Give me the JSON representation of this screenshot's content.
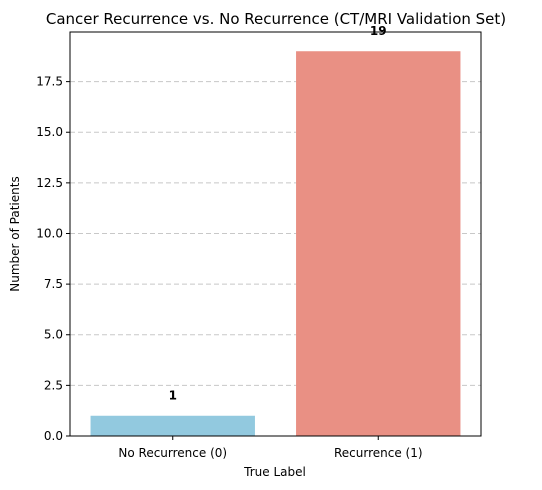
{
  "chart_data": {
    "type": "bar",
    "title": "Cancer Recurrence vs. No Recurrence (CT/MRI Validation Set)",
    "xlabel": "True Label",
    "ylabel": "Number of Patients",
    "categories": [
      "No Recurrence (0)",
      "Recurrence (1)"
    ],
    "values": [
      1,
      19
    ],
    "data_labels": [
      "1",
      "19"
    ],
    "colors": [
      "#92c9df",
      "#e99084"
    ],
    "ylim": [
      0,
      19.95
    ],
    "yticks": [
      0,
      2.5,
      5,
      7.5,
      10,
      12.5,
      15,
      17.5
    ],
    "ytick_labels": [
      "0.0",
      "2.5",
      "5.0",
      "7.5",
      "10.0",
      "12.5",
      "15.0",
      "17.5"
    ],
    "grid": "y-dashed",
    "legend": "none"
  }
}
